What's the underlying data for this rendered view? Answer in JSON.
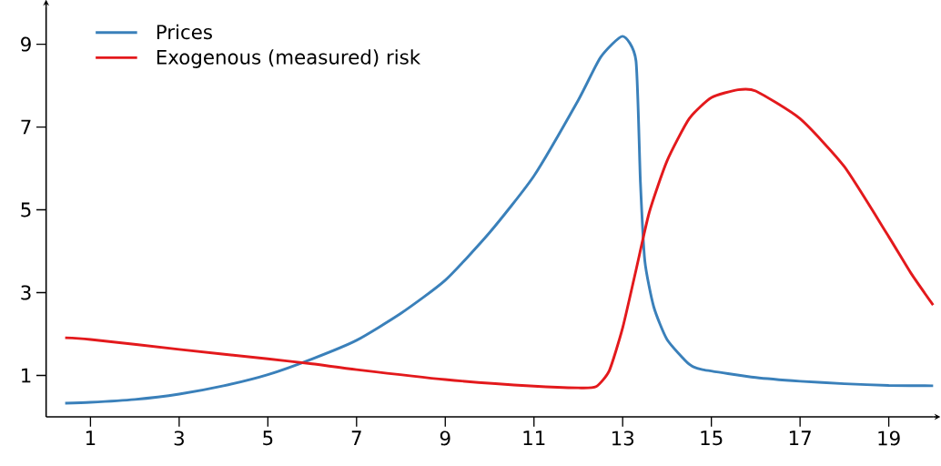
{
  "chart_data": {
    "type": "line",
    "xlim": [
      0,
      20
    ],
    "ylim": [
      0,
      9.9
    ],
    "xticks": [
      1,
      3,
      5,
      7,
      9,
      11,
      13,
      15,
      17,
      19
    ],
    "yticks": [
      1,
      3,
      5,
      7,
      9
    ],
    "grid": false,
    "legend": "top left",
    "marker": "none",
    "line_style": "solid",
    "series": [
      {
        "name": "Prices",
        "color": "#3a80ba",
        "x": [
          0.43,
          1,
          2,
          3,
          4,
          5,
          6,
          7,
          8,
          9,
          10,
          11,
          12,
          12.5,
          13,
          13.3,
          13.4,
          13.5,
          13.7,
          14,
          14.5,
          14.8,
          16,
          17,
          18,
          19,
          20
        ],
        "values": [
          0.33,
          0.35,
          0.42,
          0.55,
          0.75,
          1.02,
          1.4,
          1.85,
          2.5,
          3.3,
          4.45,
          5.82,
          7.65,
          8.68,
          9.19,
          8.6,
          5.67,
          3.76,
          2.66,
          1.87,
          1.27,
          1.14,
          0.95,
          0.86,
          0.8,
          0.76,
          0.75
        ]
      },
      {
        "name": "Exogenous (measured) risk",
        "color": "#e3191c",
        "x": [
          0.43,
          1,
          3,
          5,
          6,
          7,
          9,
          11,
          12,
          12.4,
          12.7,
          13,
          13.3,
          13.6,
          14,
          14.5,
          15,
          15.6,
          16,
          17,
          18,
          19,
          19.5,
          20
        ],
        "values": [
          1.91,
          1.87,
          1.63,
          1.4,
          1.28,
          1.14,
          0.9,
          0.74,
          0.7,
          0.73,
          1.12,
          2.15,
          3.54,
          4.94,
          6.18,
          7.2,
          7.71,
          7.9,
          7.87,
          7.2,
          6.04,
          4.35,
          3.47,
          2.7
        ]
      }
    ]
  }
}
